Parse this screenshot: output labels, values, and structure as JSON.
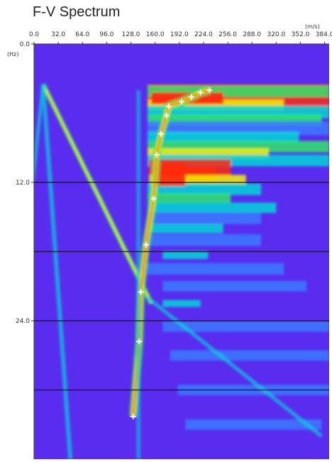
{
  "chart_data": {
    "type": "heatmap",
    "title": "F-V Spectrum",
    "x_unit": "(m/s)",
    "y_unit": "(Hz)",
    "x_ticks": [
      0.0,
      32.0,
      64.0,
      96.0,
      128.0,
      160.0,
      192.0,
      224.0,
      256.0,
      288.0,
      320.0,
      352.0,
      384.0
    ],
    "x_tick_labels": [
      "0.0",
      "32.0",
      "64.0",
      "96.0",
      "128.0",
      "160.0",
      "192.0",
      "224.0",
      "256.0",
      "288.0",
      "320.0",
      "352.0",
      "384.0"
    ],
    "y_ticks": [
      0.0,
      12.0,
      24.0
    ],
    "y_tick_labels": [
      "0.0",
      "12.0",
      "24.0"
    ],
    "xlim": [
      0.0,
      390.0
    ],
    "ylim": [
      0.0,
      36.0
    ],
    "grid_y": [
      12.0,
      18.0,
      24.0,
      30.0
    ],
    "picks": [
      {
        "v": 232.0,
        "f": 4.0
      },
      {
        "v": 220.0,
        "f": 4.2
      },
      {
        "v": 208.0,
        "f": 4.6
      },
      {
        "v": 195.0,
        "f": 5.0
      },
      {
        "v": 178.0,
        "f": 5.4
      },
      {
        "v": 175.0,
        "f": 6.2
      },
      {
        "v": 168.0,
        "f": 7.8
      },
      {
        "v": 162.0,
        "f": 9.6
      },
      {
        "v": 158.0,
        "f": 13.4
      },
      {
        "v": 148.0,
        "f": 17.4
      },
      {
        "v": 141.0,
        "f": 21.5
      },
      {
        "v": 139.0,
        "f": 25.8
      },
      {
        "v": 131.0,
        "f": 32.3
      }
    ],
    "colors": {
      "background": "#5a2cf0",
      "low": "#3a7bff",
      "mid": "#00d7d7",
      "green": "#2ee86a",
      "yellow": "#f4f000",
      "high": "#ff2a10",
      "grid": "#111111",
      "pick": "#ffffff"
    }
  }
}
